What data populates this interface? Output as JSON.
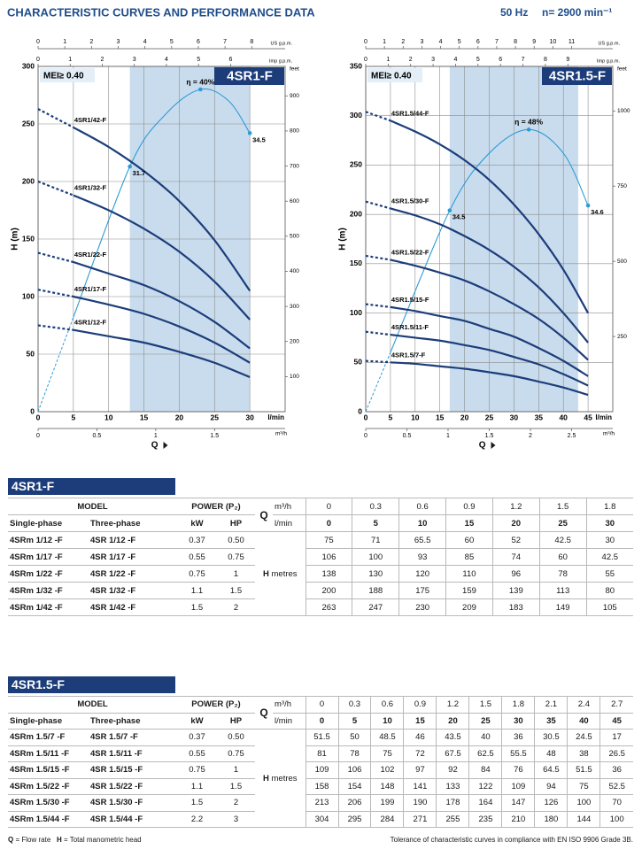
{
  "header": {
    "title": "CHARACTERISTIC CURVES AND PERFORMANCE DATA",
    "frequency": "50 Hz",
    "speed": "n= 2900 min⁻¹"
  },
  "chart_data": [
    {
      "type": "line",
      "title": "4SR1-F",
      "mei": "MEI≥ 0.40",
      "ylabel": "H (m)",
      "xlabel": "Q",
      "xunit": "l/min",
      "x": [
        0,
        5,
        10,
        15,
        20,
        25,
        30
      ],
      "xlim": [
        0,
        35
      ],
      "xticks": [
        0,
        5,
        10,
        15,
        20,
        25,
        30
      ],
      "ylim": [
        0,
        300
      ],
      "yticks": [
        0,
        50,
        100,
        150,
        200,
        250,
        300
      ],
      "top_axes": [
        {
          "label": "US g.p.m.",
          "lim": [
            0,
            9.25
          ],
          "ticks": [
            0,
            1,
            2,
            3,
            4,
            5,
            6,
            7,
            8
          ]
        },
        {
          "label": "Imp g.p.m.",
          "lim": [
            0,
            7.7
          ],
          "ticks": [
            0,
            1,
            2,
            3,
            4,
            5,
            6
          ]
        }
      ],
      "x3": {
        "label": "m³/h",
        "lim": [
          0,
          2.1
        ],
        "ticks": [
          0,
          0.5,
          1,
          1.5
        ]
      },
      "y2label": "feet",
      "y2lim": [
        0,
        984
      ],
      "y2ticks": [
        100,
        200,
        300,
        400,
        500,
        600,
        700,
        800,
        900
      ],
      "range": [
        13,
        30
      ],
      "range_color": "#c9dced",
      "grid": true,
      "lead_dashed": true,
      "series": [
        {
          "name": "4SR1/12-F",
          "color": "#1c3d7a",
          "values": [
            75,
            71,
            65.5,
            60,
            52,
            42.5,
            30
          ]
        },
        {
          "name": "4SR1/17-F",
          "color": "#1c3d7a",
          "values": [
            106,
            100,
            93,
            85,
            74,
            60,
            42.5
          ]
        },
        {
          "name": "4SR1/22-F",
          "color": "#1c3d7a",
          "values": [
            138,
            130,
            120,
            110,
            96,
            78,
            55
          ]
        },
        {
          "name": "4SR1/32-F",
          "color": "#1c3d7a",
          "values": [
            200,
            188,
            175,
            159,
            139,
            113,
            80
          ]
        },
        {
          "name": "4SR1/42-F",
          "color": "#1c3d7a",
          "values": [
            263,
            247,
            230,
            209,
            183,
            149,
            105
          ]
        }
      ],
      "efficiency": {
        "x": [
          0,
          5,
          13,
          18,
          23,
          27,
          30
        ],
        "values": [
          0,
          82,
          213,
          258,
          280,
          270,
          242
        ],
        "color": "#2e9bd6",
        "annotations": [
          {
            "text": "31.7",
            "x": 13,
            "y": 213
          },
          {
            "text": "η = 40%",
            "x": 23,
            "y": 280
          },
          {
            "text": "34.5",
            "x": 30,
            "y": 242
          }
        ]
      }
    },
    {
      "type": "line",
      "title": "4SR1.5-F",
      "mei": "MEI≥ 0.40",
      "ylabel": "H (m)",
      "xlabel": "Q",
      "xunit": "l/min",
      "x": [
        0,
        5,
        10,
        15,
        20,
        25,
        30,
        35,
        40,
        45
      ],
      "xlim": [
        0,
        50
      ],
      "xticks": [
        0,
        5,
        10,
        15,
        20,
        25,
        30,
        35,
        40,
        45
      ],
      "ylim": [
        0,
        350
      ],
      "yticks": [
        0,
        50,
        100,
        150,
        200,
        250,
        300,
        350
      ],
      "top_axes": [
        {
          "label": "US g.p.m.",
          "lim": [
            0,
            13.2
          ],
          "ticks": [
            0,
            1,
            2,
            3,
            4,
            5,
            6,
            7,
            8,
            9,
            10,
            11
          ]
        },
        {
          "label": "Imp g.p.m.",
          "lim": [
            0,
            11
          ],
          "ticks": [
            0,
            1,
            2,
            3,
            4,
            5,
            6,
            7,
            8,
            9
          ]
        }
      ],
      "x3": {
        "label": "m³/h",
        "lim": [
          0,
          3
        ],
        "ticks": [
          0,
          0.5,
          1,
          1.5,
          2,
          2.5
        ]
      },
      "y2label": "feet",
      "y2lim": [
        0,
        1148
      ],
      "y2ticks": [
        250,
        500,
        750,
        1000
      ],
      "range": [
        17,
        43
      ],
      "range_color": "#c9dced",
      "grid": true,
      "lead_dashed": true,
      "series": [
        {
          "name": "4SR1.5/7-F",
          "color": "#1c3d7a",
          "values": [
            51.5,
            50,
            48.5,
            46,
            43.5,
            40,
            36,
            30.5,
            24.5,
            17
          ]
        },
        {
          "name": "4SR1.5/11-F",
          "color": "#1c3d7a",
          "values": [
            81,
            78,
            75,
            72,
            67.5,
            62.5,
            55.5,
            48,
            38,
            26.5
          ]
        },
        {
          "name": "4SR1.5/15-F",
          "color": "#1c3d7a",
          "values": [
            109,
            106,
            102,
            97,
            92,
            84,
            76,
            64.5,
            51.5,
            36
          ]
        },
        {
          "name": "4SR1.5/22-F",
          "color": "#1c3d7a",
          "values": [
            158,
            154,
            148,
            141,
            133,
            122,
            109,
            94,
            75,
            52.5
          ]
        },
        {
          "name": "4SR1.5/30-F",
          "color": "#1c3d7a",
          "values": [
            213,
            206,
            199,
            190,
            178,
            164,
            147,
            126,
            100,
            70
          ]
        },
        {
          "name": "4SR1.5/44-F",
          "color": "#1c3d7a",
          "values": [
            304,
            295,
            284,
            271,
            255,
            235,
            210,
            180,
            144,
            100
          ]
        }
      ],
      "efficiency": {
        "x": [
          0,
          5,
          17,
          25,
          33,
          40,
          45
        ],
        "values": [
          0,
          60,
          204,
          262,
          286,
          262,
          209
        ],
        "color": "#2e9bd6",
        "annotations": [
          {
            "text": "34.5",
            "x": 17,
            "y": 204
          },
          {
            "text": "η = 48%",
            "x": 33,
            "y": 286
          },
          {
            "text": "34.6",
            "x": 45,
            "y": 209
          }
        ]
      }
    }
  ],
  "tables": [
    {
      "title": "4SR1-F",
      "header": {
        "model": "MODEL",
        "single_phase": "Single-phase",
        "three_phase": "Three-phase",
        "power": "POWER (P₂)",
        "kw": "kW",
        "hp": "HP",
        "q": "Q",
        "m3h": "m³/h",
        "lmin": "l/min",
        "h": "H",
        "metres": "metres"
      },
      "q_m3h": [
        0,
        0.3,
        0.6,
        0.9,
        1.2,
        1.5,
        1.8
      ],
      "q_lmin": [
        0,
        5,
        10,
        15,
        20,
        25,
        30
      ],
      "rows": [
        {
          "single": "4SRm 1/12 -F",
          "three": "4SR 1/12 -F",
          "kw": 0.37,
          "hp": "0.50",
          "h": [
            75,
            71,
            65.5,
            60,
            52,
            42.5,
            30
          ]
        },
        {
          "single": "4SRm 1/17 -F",
          "three": "4SR 1/17 -F",
          "kw": 0.55,
          "hp": 0.75,
          "h": [
            106,
            100,
            93,
            85,
            74,
            60,
            42.5
          ]
        },
        {
          "single": "4SRm 1/22 -F",
          "three": "4SR 1/22 -F",
          "kw": 0.75,
          "hp": 1,
          "h": [
            138,
            130,
            120,
            110,
            96,
            78,
            55
          ]
        },
        {
          "single": "4SRm 1/32 -F",
          "three": "4SR 1/32 -F",
          "kw": 1.1,
          "hp": 1.5,
          "h": [
            200,
            188,
            175,
            159,
            139,
            113,
            80
          ]
        },
        {
          "single": "4SRm 1/42 -F",
          "three": "4SR 1/42 -F",
          "kw": 1.5,
          "hp": 2,
          "h": [
            263,
            247,
            230,
            209,
            183,
            149,
            105
          ]
        }
      ]
    },
    {
      "title": "4SR1.5-F",
      "header": {
        "model": "MODEL",
        "single_phase": "Single-phase",
        "three_phase": "Three-phase",
        "power": "POWER (P₂)",
        "kw": "kW",
        "hp": "HP",
        "q": "Q",
        "m3h": "m³/h",
        "lmin": "l/min",
        "h": "H",
        "metres": "metres"
      },
      "q_m3h": [
        0,
        0.3,
        0.6,
        0.9,
        1.2,
        1.5,
        1.8,
        2.1,
        2.4,
        2.7
      ],
      "q_lmin": [
        0,
        5,
        10,
        15,
        20,
        25,
        30,
        35,
        40,
        45
      ],
      "rows": [
        {
          "single": "4SRm 1.5/7 -F",
          "three": "4SR 1.5/7 -F",
          "kw": 0.37,
          "hp": "0.50",
          "h": [
            51.5,
            50,
            48.5,
            46,
            43.5,
            40,
            36,
            30.5,
            24.5,
            17
          ]
        },
        {
          "single": "4SRm 1.5/11 -F",
          "three": "4SR 1.5/11 -F",
          "kw": 0.55,
          "hp": 0.75,
          "h": [
            81,
            78,
            75,
            72,
            67.5,
            62.5,
            55.5,
            48,
            38,
            26.5
          ]
        },
        {
          "single": "4SRm 1.5/15 -F",
          "three": "4SR 1.5/15 -F",
          "kw": 0.75,
          "hp": 1,
          "h": [
            109,
            106,
            102,
            97,
            92,
            84,
            76,
            64.5,
            51.5,
            36
          ]
        },
        {
          "single": "4SRm 1.5/22 -F",
          "three": "4SR 1.5/22 -F",
          "kw": 1.1,
          "hp": 1.5,
          "h": [
            158,
            154,
            148,
            141,
            133,
            122,
            109,
            94,
            75,
            52.5
          ]
        },
        {
          "single": "4SRm 1.5/30 -F",
          "three": "4SR 1.5/30 -F",
          "kw": 1.5,
          "hp": 2,
          "h": [
            213,
            206,
            199,
            190,
            178,
            164,
            147,
            126,
            100,
            70
          ]
        },
        {
          "single": "4SRm 1.5/44 -F",
          "three": "4SR 1.5/44 -F",
          "kw": 2.2,
          "hp": 3,
          "h": [
            304,
            295,
            284,
            271,
            255,
            235,
            210,
            180,
            144,
            100
          ]
        }
      ]
    }
  ],
  "footer": {
    "q_symbol": "Q",
    "q_text": "= Flow rate",
    "h_symbol": "H",
    "h_text": "= Total manometric head",
    "note": "Tolerance of characteristic curves in compliance with EN ISO 9906 Grade 3B."
  }
}
